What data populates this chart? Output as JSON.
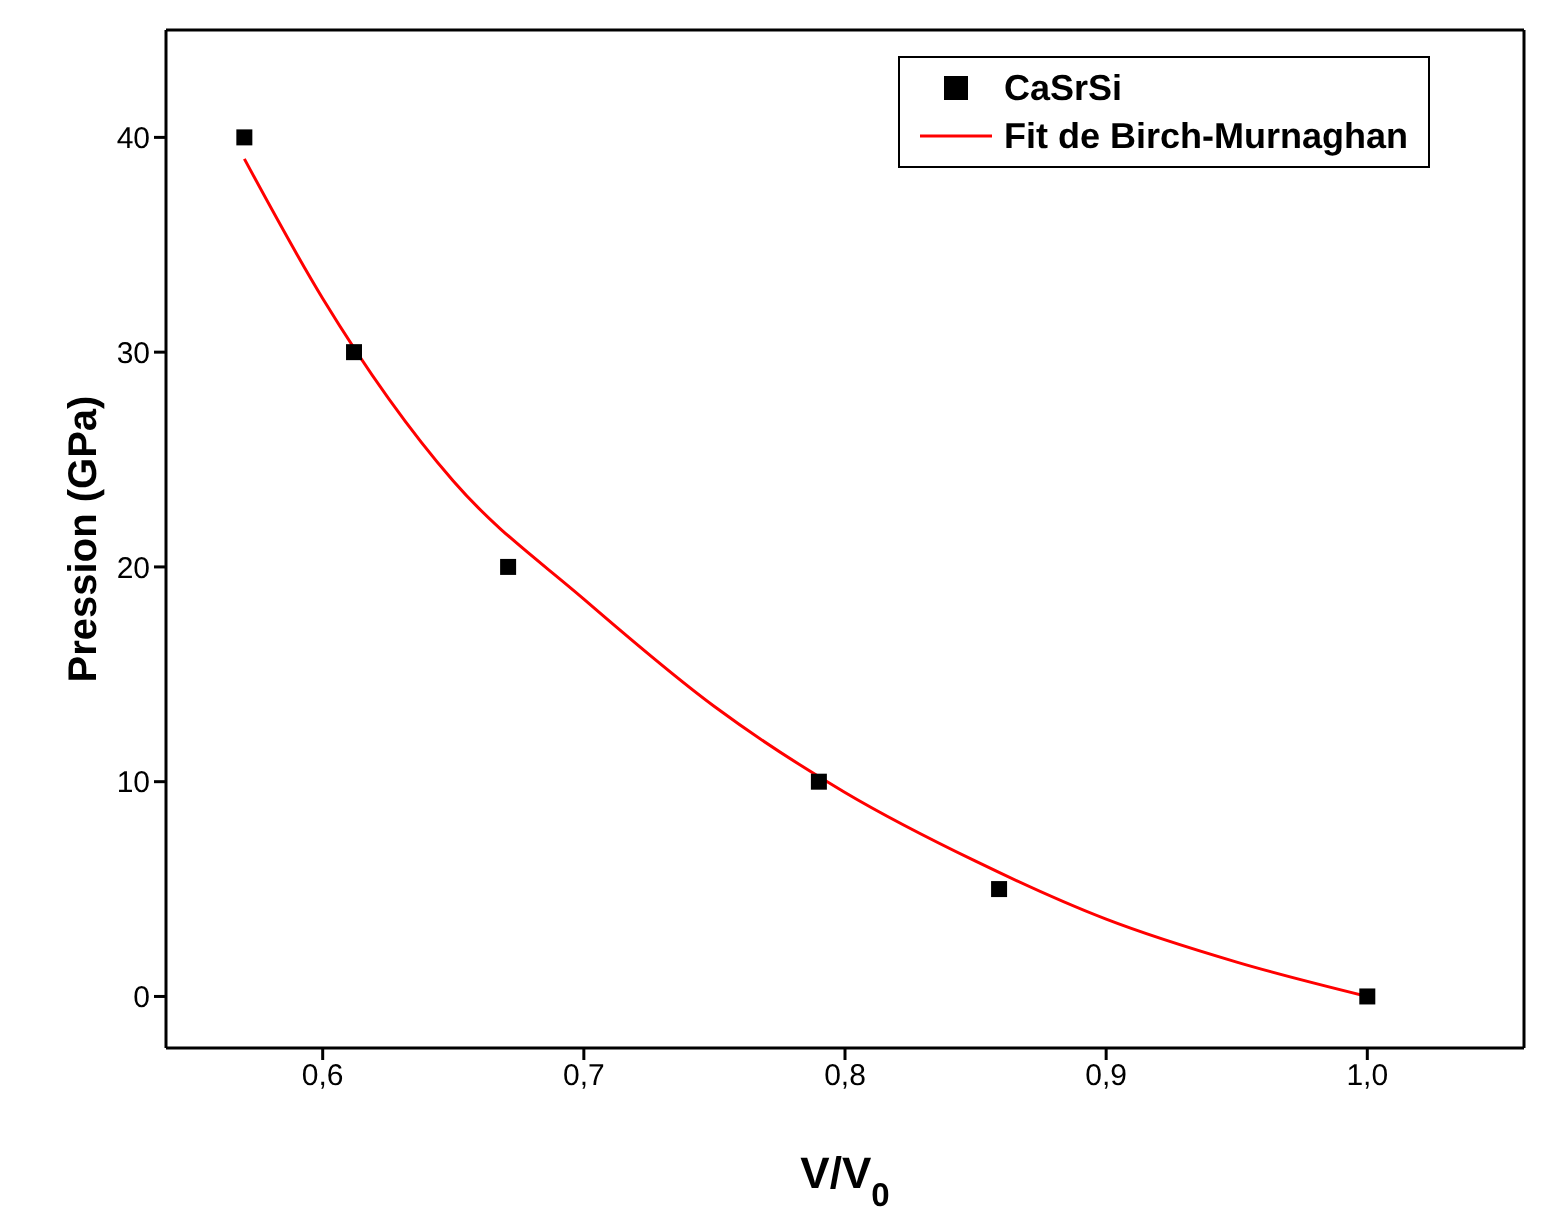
{
  "chart_data": {
    "type": "scatter",
    "xlabel": "V/V$_{0}$",
    "ylabel": "Pression (GPa)",
    "xlim": [
      0.54,
      1.06
    ],
    "ylim": [
      -2.4,
      45
    ],
    "xticks": [
      {
        "value": 0.6,
        "label": "0,6"
      },
      {
        "value": 0.7,
        "label": "0,7"
      },
      {
        "value": 0.8,
        "label": "0,8"
      },
      {
        "value": 0.9,
        "label": "0,9"
      },
      {
        "value": 1.0,
        "label": "1,0"
      }
    ],
    "yticks": [
      0,
      10,
      20,
      30,
      40
    ],
    "grid": false,
    "legend": "top right",
    "series": [
      {
        "name": "CaSrSi",
        "marker": "square",
        "color": "#000000",
        "x": [
          0.57,
          0.612,
          0.671,
          0.79,
          0.859,
          1.0
        ],
        "values": [
          40,
          30,
          20,
          10,
          5,
          0
        ]
      },
      {
        "name": "Fit de Birch-Murnaghan",
        "type": "line",
        "marker": "none",
        "line_style": "solid",
        "color": "#ff0000",
        "x": [
          0.57,
          0.6,
          0.65,
          0.7,
          0.75,
          0.8,
          0.85,
          0.9,
          0.95,
          1.0
        ],
        "values": [
          39,
          32.5,
          24,
          18.5,
          13.5,
          9.5,
          6.3,
          3.6,
          1.6,
          0
        ]
      }
    ]
  }
}
